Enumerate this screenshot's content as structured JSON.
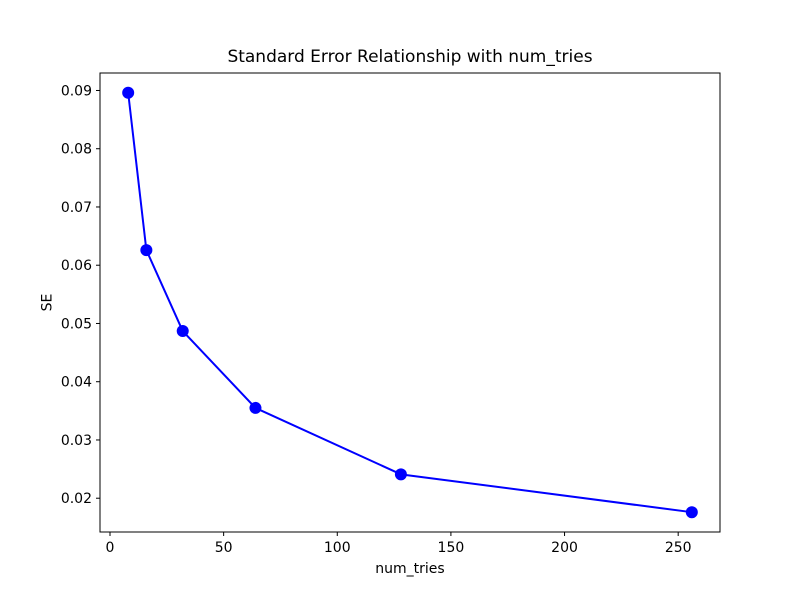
{
  "figure": {
    "background": "#ffffff"
  },
  "chart_data": {
    "type": "line",
    "title": "Standard Error Relationship with num_tries",
    "xlabel": "num_tries",
    "ylabel": "SE",
    "x": [
      8,
      16,
      32,
      64,
      128,
      256
    ],
    "y": [
      0.0896,
      0.0626,
      0.0487,
      0.0355,
      0.0241,
      0.0176
    ],
    "xticks": [
      0,
      50,
      100,
      150,
      200,
      250
    ],
    "yticks": [
      0.02,
      0.03,
      0.04,
      0.05,
      0.06,
      0.07,
      0.08,
      0.09
    ],
    "ytick_decimals": 2,
    "xlim": [
      -4.4,
      268.4
    ],
    "ylim": [
      0.0142,
      0.093
    ],
    "grid": false,
    "legend": "none",
    "line_color": "#0000ff",
    "marker": "circle",
    "marker_color": "#0000ff",
    "axes_color": "#000000",
    "text_color": "#000000"
  }
}
